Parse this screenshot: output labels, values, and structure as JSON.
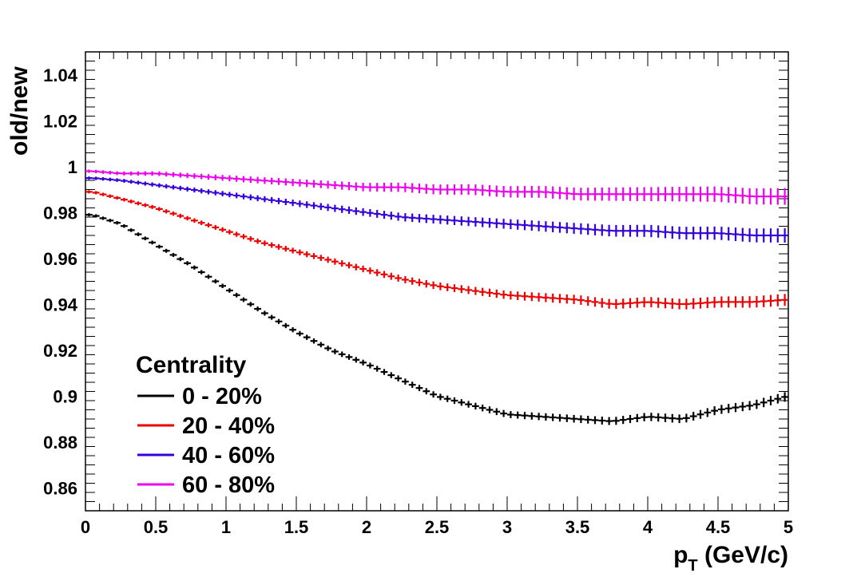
{
  "chart_data": {
    "type": "scatter",
    "title": "",
    "xlabel_main": "p",
    "xlabel_sub": "T",
    "xlabel_unit": " (GeV/c)",
    "ylabel": "old/new",
    "xlim": [
      0,
      5
    ],
    "ylim": [
      0.85,
      1.05
    ],
    "x_ticks": [
      "0",
      "0.5",
      "1",
      "1.5",
      "2",
      "2.5",
      "3",
      "3.5",
      "4",
      "4.5",
      "5"
    ],
    "y_ticks": [
      "0.86",
      "0.88",
      "0.9",
      "0.92",
      "0.94",
      "0.96",
      "0.98",
      "1",
      "1.02",
      "1.04"
    ],
    "grid": false,
    "legend_position": "bottom-left",
    "legend_title": "Centrality",
    "x": [
      0.05,
      0.25,
      0.5,
      0.75,
      1.0,
      1.25,
      1.5,
      1.75,
      2.0,
      2.25,
      2.5,
      2.75,
      3.0,
      3.25,
      3.5,
      3.75,
      4.0,
      4.25,
      4.5,
      4.75,
      5.0
    ],
    "series": [
      {
        "name": "0 - 20%",
        "color": "#000000",
        "values": [
          0.979,
          0.975,
          0.966,
          0.957,
          0.947,
          0.937,
          0.928,
          0.92,
          0.914,
          0.907,
          0.9,
          0.896,
          0.892,
          0.891,
          0.89,
          0.889,
          0.891,
          0.89,
          0.894,
          0.896,
          0.9
        ]
      },
      {
        "name": "20 - 40%",
        "color": "#ee0000",
        "values": [
          0.989,
          0.986,
          0.982,
          0.977,
          0.972,
          0.967,
          0.963,
          0.959,
          0.955,
          0.951,
          0.948,
          0.946,
          0.944,
          0.943,
          0.942,
          0.94,
          0.941,
          0.94,
          0.941,
          0.941,
          0.942
        ]
      },
      {
        "name": "40 - 60%",
        "color": "#3300dd",
        "values": [
          0.995,
          0.994,
          0.992,
          0.99,
          0.988,
          0.986,
          0.984,
          0.982,
          0.98,
          0.978,
          0.977,
          0.976,
          0.975,
          0.974,
          0.973,
          0.972,
          0.972,
          0.971,
          0.971,
          0.97,
          0.97
        ]
      },
      {
        "name": "60 - 80%",
        "color": "#ee00ee",
        "values": [
          0.998,
          0.997,
          0.997,
          0.996,
          0.995,
          0.994,
          0.993,
          0.992,
          0.991,
          0.991,
          0.99,
          0.99,
          0.989,
          0.989,
          0.988,
          0.988,
          0.988,
          0.988,
          0.988,
          0.987,
          0.987
        ]
      }
    ]
  }
}
